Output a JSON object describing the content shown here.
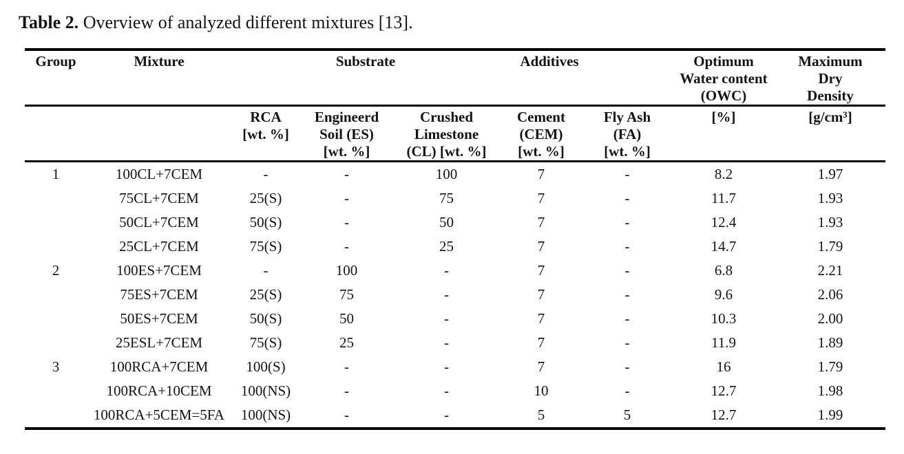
{
  "caption": {
    "label": "Table 2.",
    "text": " Overview of analyzed different mixtures [13]."
  },
  "table": {
    "column_keys": [
      "group",
      "mixture",
      "rca",
      "es",
      "cl",
      "cem",
      "fa",
      "owc",
      "mdd"
    ],
    "header_row1": {
      "group": "Group",
      "mixture": "Mixture",
      "substrate": "Substrate",
      "additives": "Additives",
      "owc": "Optimum\nWater content\n(OWC)",
      "mdd": "Maximum\nDry\nDensity"
    },
    "header_row2": {
      "rca": "RCA\n[wt. %]",
      "es": "Engineerd\nSoil (ES)\n[wt. %]",
      "cl": "Crushed\nLimestone\n(CL) [wt. %]",
      "cem": "Cement\n(CEM)\n[wt. %]",
      "fa": "Fly Ash\n(FA)\n[wt. %]",
      "owc_unit": "[%]",
      "mdd_unit": "[g/cm³]"
    },
    "rows": [
      [
        "1",
        "100CL+7CEM",
        "-",
        "-",
        "100",
        "7",
        "-",
        "8.2",
        "1.97"
      ],
      [
        "",
        "75CL+7CEM",
        "25(S)",
        "-",
        "75",
        "7",
        "-",
        "11.7",
        "1.93"
      ],
      [
        "",
        "50CL+7CEM",
        "50(S)",
        "-",
        "50",
        "7",
        "-",
        "12.4",
        "1.93"
      ],
      [
        "",
        "25CL+7CEM",
        "75(S)",
        "-",
        "25",
        "7",
        "-",
        "14.7",
        "1.79"
      ],
      [
        "2",
        "100ES+7CEM",
        "-",
        "100",
        "-",
        "7",
        "-",
        "6.8",
        "2.21"
      ],
      [
        "",
        "75ES+7CEM",
        "25(S)",
        "75",
        "-",
        "7",
        "-",
        "9.6",
        "2.06"
      ],
      [
        "",
        "50ES+7CEM",
        "50(S)",
        "50",
        "-",
        "7",
        "-",
        "10.3",
        "2.00"
      ],
      [
        "",
        "25ESL+7CEM",
        "75(S)",
        "25",
        "-",
        "7",
        "-",
        "11.9",
        "1.89"
      ],
      [
        "3",
        "100RCA+7CEM",
        "100(S)",
        "-",
        "-",
        "7",
        "-",
        "16",
        "1.79"
      ],
      [
        "",
        "100RCA+10CEM",
        "100(NS)",
        "-",
        "-",
        "10",
        "-",
        "12.7",
        "1.98"
      ],
      [
        "",
        "100RCA+5CEM=5FA",
        "100(NS)",
        "-",
        "-",
        "5",
        "5",
        "12.7",
        "1.99"
      ]
    ]
  },
  "colors": {
    "text": "#131313",
    "rule": "#000000",
    "background": "#ffffff"
  }
}
